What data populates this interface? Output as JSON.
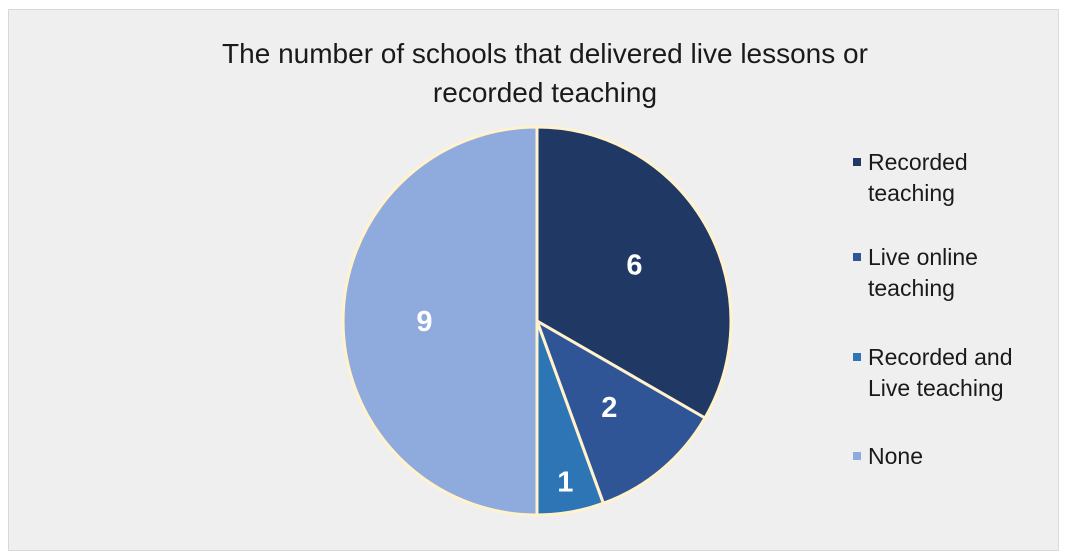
{
  "chart_data": {
    "type": "pie",
    "title": "The number of schools that delivered live lessons or recorded teaching",
    "title_lines": [
      "The number of schools that delivered live lessons or",
      "recorded teaching"
    ],
    "categories": [
      "Recorded teaching",
      "Live online teaching",
      "Recorded and Live teaching",
      "None"
    ],
    "values": [
      6,
      2,
      1,
      9
    ],
    "colors": [
      "#1f3864",
      "#2f5597",
      "#2e75b6",
      "#8faadc"
    ],
    "slice_border_color": "#fff2cc",
    "legend_position": "right",
    "legend_entries": [
      {
        "lines": [
          "Recorded",
          "teaching"
        ]
      },
      {
        "lines": [
          "Live online",
          "teaching"
        ]
      },
      {
        "lines": [
          "Recorded and",
          "Live teaching"
        ]
      },
      {
        "lines": [
          "None"
        ]
      }
    ],
    "data_labels": [
      "6",
      "2",
      "1",
      "9"
    ]
  }
}
